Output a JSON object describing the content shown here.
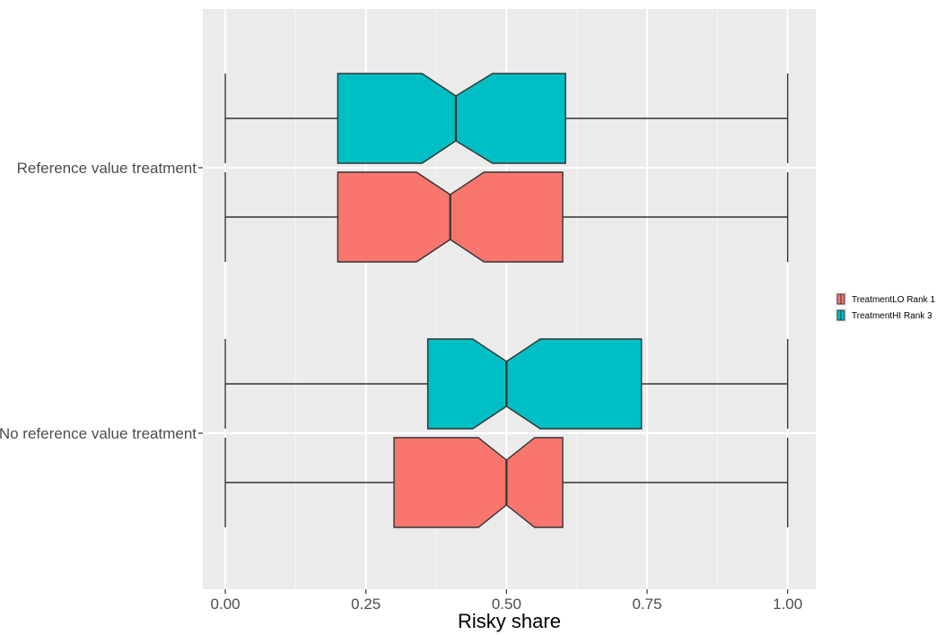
{
  "chart_data": {
    "type": "boxplot",
    "orientation": "horizontal",
    "notched": true,
    "xlabel": "Risky share",
    "ylabel": "",
    "xlim": [
      -0.04,
      1.05
    ],
    "x_ticks": [
      0,
      0.25,
      0.5,
      0.75,
      1
    ],
    "x_tick_labels": [
      "0.00",
      "0.25",
      "0.50",
      "0.75",
      "1.00"
    ],
    "categories": [
      "Reference value treatment",
      "No reference value treatment"
    ],
    "grid": true,
    "legend_position": "right",
    "series": [
      {
        "name": "TreatmentLO Rank 1",
        "color": "#F8766D",
        "boxes": [
          {
            "category": "Reference value treatment",
            "min": 0,
            "q1": 0.2,
            "median": 0.4,
            "q3": 0.6,
            "max": 1,
            "notch_low": 0.34,
            "notch_high": 0.46
          },
          {
            "category": "No reference value treatment",
            "min": 0,
            "q1": 0.3,
            "median": 0.5,
            "q3": 0.6,
            "max": 1,
            "notch_low": 0.45,
            "notch_high": 0.55
          }
        ]
      },
      {
        "name": "TreatmentHI Rank 3",
        "color": "#00BFC4",
        "boxes": [
          {
            "category": "Reference value treatment",
            "min": 0,
            "q1": 0.2,
            "median": 0.41,
            "q3": 0.605,
            "max": 1,
            "notch_low": 0.35,
            "notch_high": 0.475
          },
          {
            "category": "No reference value treatment",
            "min": 0,
            "q1": 0.36,
            "median": 0.5,
            "q3": 0.74,
            "max": 1,
            "notch_low": 0.44,
            "notch_high": 0.56
          }
        ]
      }
    ]
  },
  "style": {
    "panel_background": "#EBEBEB",
    "grid_major": "#FFFFFF",
    "grid_minor": "#F5F5F5",
    "box_outline": "#333333"
  }
}
